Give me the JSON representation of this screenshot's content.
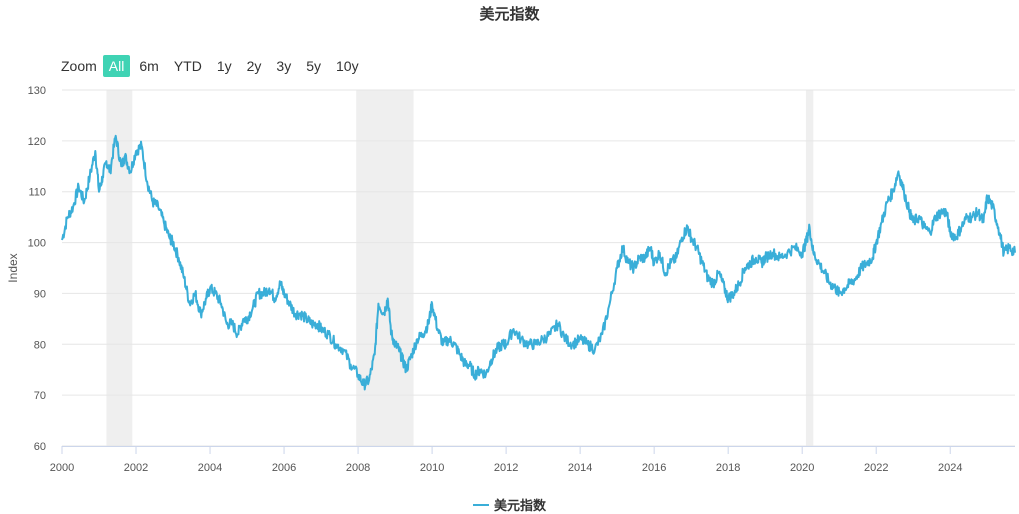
{
  "title": "美元指数",
  "zoom": {
    "label": "Zoom",
    "buttons": [
      "All",
      "6m",
      "YTD",
      "1y",
      "2y",
      "3y",
      "5y",
      "10y"
    ],
    "active": "All"
  },
  "colors": {
    "line": "#3aaed8",
    "band": "#efefef",
    "grid": "#e6e6e6",
    "active": "#3fd3b4"
  },
  "legend": {
    "label": "美元指数"
  },
  "chart_data": {
    "type": "line",
    "title": "美元指数",
    "ylabel": "Index",
    "xlabel": "",
    "ylim": [
      60,
      130
    ],
    "yticks": [
      60,
      70,
      80,
      90,
      100,
      110,
      120,
      130
    ],
    "xlim": [
      2000,
      2025.75
    ],
    "xticks": [
      2000,
      2002,
      2004,
      2006,
      2008,
      2010,
      2012,
      2014,
      2016,
      2018,
      2020,
      2022,
      2024
    ],
    "grid": true,
    "legend_position": "bottom",
    "recession_bands": [
      [
        2001.2,
        2001.9
      ],
      [
        2007.95,
        2009.5
      ],
      [
        2020.1,
        2020.3
      ]
    ],
    "series": [
      {
        "name": "美元指数",
        "x": [
          2000.0,
          2000.15,
          2000.3,
          2000.45,
          2000.6,
          2000.75,
          2000.9,
          2001.0,
          2001.1,
          2001.2,
          2001.3,
          2001.45,
          2001.6,
          2001.7,
          2001.85,
          2002.0,
          2002.15,
          2002.3,
          2002.45,
          2002.6,
          2002.75,
          2002.9,
          2003.0,
          2003.15,
          2003.3,
          2003.45,
          2003.6,
          2003.75,
          2003.9,
          2004.0,
          2004.15,
          2004.3,
          2004.45,
          2004.6,
          2004.75,
          2004.9,
          2005.0,
          2005.15,
          2005.3,
          2005.45,
          2005.6,
          2005.75,
          2005.9,
          2006.0,
          2006.15,
          2006.3,
          2006.45,
          2006.6,
          2006.75,
          2006.9,
          2007.0,
          2007.2,
          2007.4,
          2007.6,
          2007.8,
          2008.0,
          2008.15,
          2008.3,
          2008.45,
          2008.55,
          2008.7,
          2008.8,
          2008.9,
          2009.0,
          2009.1,
          2009.2,
          2009.3,
          2009.45,
          2009.6,
          2009.75,
          2009.9,
          2010.0,
          2010.15,
          2010.3,
          2010.45,
          2010.6,
          2010.75,
          2010.9,
          2011.0,
          2011.15,
          2011.3,
          2011.45,
          2011.6,
          2011.75,
          2011.9,
          2012.0,
          2012.2,
          2012.4,
          2012.6,
          2012.8,
          2013.0,
          2013.2,
          2013.4,
          2013.6,
          2013.8,
          2014.0,
          2014.2,
          2014.4,
          2014.6,
          2014.8,
          2015.0,
          2015.15,
          2015.3,
          2015.45,
          2015.6,
          2015.75,
          2015.9,
          2016.0,
          2016.15,
          2016.3,
          2016.45,
          2016.6,
          2016.75,
          2016.9,
          2017.0,
          2017.15,
          2017.3,
          2017.45,
          2017.6,
          2017.75,
          2017.9,
          2018.0,
          2018.15,
          2018.3,
          2018.45,
          2018.6,
          2018.75,
          2018.9,
          2019.0,
          2019.2,
          2019.4,
          2019.6,
          2019.8,
          2020.0,
          2020.1,
          2020.2,
          2020.3,
          2020.45,
          2020.6,
          2020.75,
          2020.9,
          2021.0,
          2021.15,
          2021.3,
          2021.45,
          2021.6,
          2021.75,
          2021.9,
          2022.0,
          2022.15,
          2022.3,
          2022.45,
          2022.6,
          2022.75,
          2022.9,
          2023.0,
          2023.15,
          2023.3,
          2023.45,
          2023.6,
          2023.75,
          2023.9,
          2024.0,
          2024.15,
          2024.3,
          2024.45,
          2024.6,
          2024.75,
          2024.9,
          2025.0,
          2025.15,
          2025.3,
          2025.45,
          2025.6,
          2025.75
        ],
        "values": [
          100.5,
          105,
          107,
          111,
          108,
          113,
          118,
          110,
          113,
          116,
          114,
          121,
          115,
          117,
          114,
          118,
          119,
          112,
          108,
          107,
          104,
          101,
          100,
          97,
          93,
          88,
          90,
          86,
          89,
          91,
          90,
          88,
          84,
          84,
          82,
          85,
          85,
          87,
          90,
          90,
          91,
          89,
          92,
          90,
          88,
          86,
          86,
          85,
          84,
          84,
          83,
          82,
          80,
          79,
          76,
          74,
          72,
          73,
          78,
          88,
          86,
          89,
          82,
          80,
          79,
          77,
          75,
          78,
          81,
          82,
          84,
          88,
          83,
          80,
          81,
          80,
          78,
          76,
          76,
          74,
          75,
          74,
          77,
          79,
          80,
          80,
          83,
          81,
          80,
          80,
          81,
          82,
          84,
          81,
          80,
          81,
          80,
          79,
          82,
          88,
          95,
          99,
          96,
          95,
          97,
          97,
          99,
          96,
          98,
          94,
          96,
          97,
          101,
          103,
          101,
          99,
          96,
          93,
          92,
          94,
          91,
          89,
          90,
          92,
          95,
          96,
          97,
          96,
          97,
          98,
          97,
          98,
          99,
          98,
          100,
          103,
          98,
          96,
          94,
          92,
          91,
          90,
          91,
          92,
          93,
          95,
          96,
          97,
          100,
          104,
          108,
          110,
          114,
          110,
          106,
          104,
          105,
          103,
          102,
          105,
          106,
          106,
          102,
          101,
          103,
          105,
          105,
          106,
          104,
          109,
          107,
          103,
          98,
          99,
          98
        ]
      }
    ]
  }
}
